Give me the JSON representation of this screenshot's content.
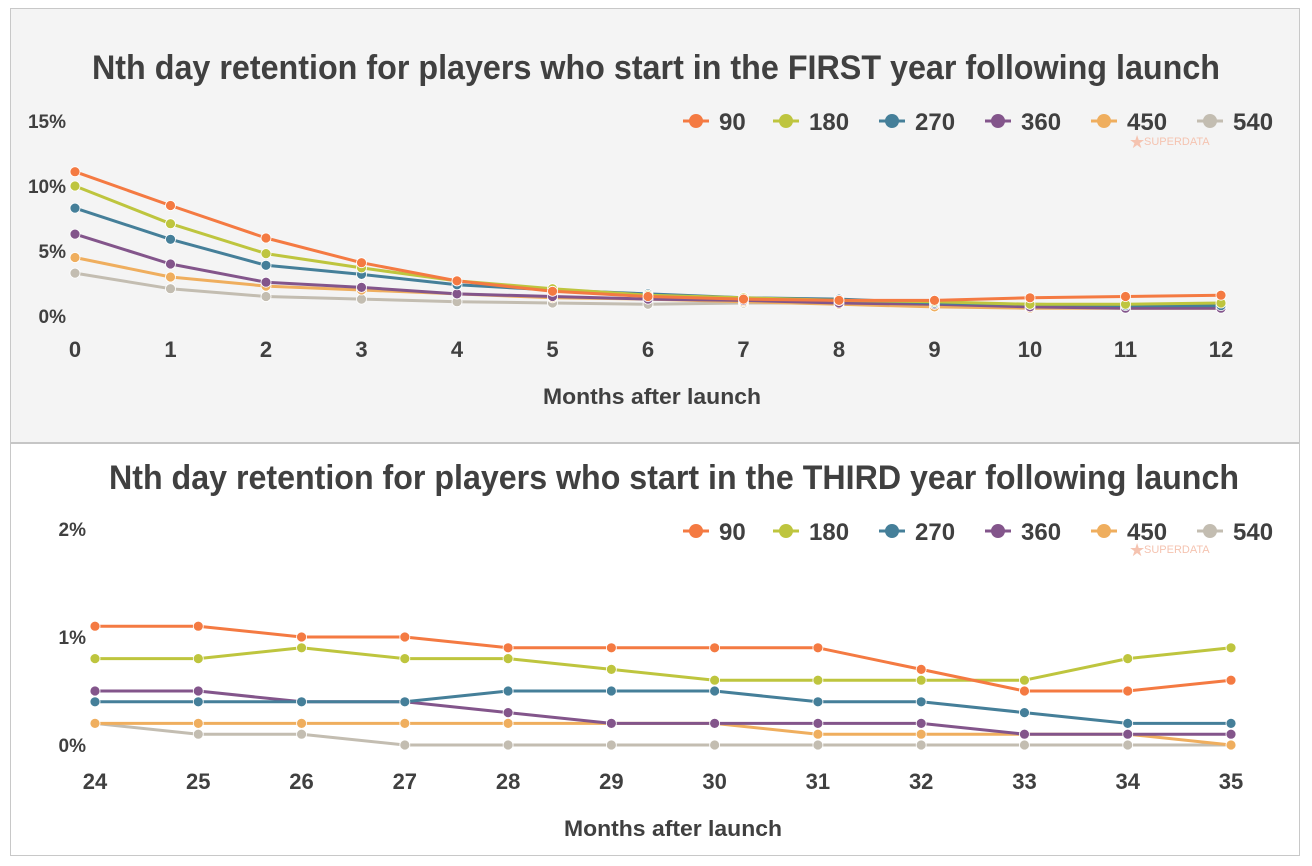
{
  "chart_data": [
    {
      "type": "line",
      "title": "Nth day retention for players who start in the FIRST year following launch",
      "xlabel": "Months after launch",
      "ylabel": "",
      "x": [
        0,
        1,
        2,
        3,
        4,
        5,
        6,
        7,
        8,
        9,
        10,
        11,
        12
      ],
      "ylim": [
        0,
        15
      ],
      "yticks": [
        0,
        5,
        10,
        15
      ],
      "ytick_labels": [
        "0%",
        "5%",
        "10%",
        "15%"
      ],
      "legend_position": "top-right",
      "grid": false,
      "watermark": "SUPERDATA",
      "series": [
        {
          "name": "90",
          "color": "#f47a42",
          "values": [
            11.1,
            8.5,
            6.0,
            4.1,
            2.7,
            1.9,
            1.5,
            1.3,
            1.2,
            1.2,
            1.4,
            1.5,
            1.6
          ]
        },
        {
          "name": "180",
          "color": "#bec53e",
          "values": [
            10.0,
            7.1,
            4.8,
            3.7,
            2.7,
            2.1,
            1.6,
            1.4,
            1.2,
            1.1,
            0.9,
            0.9,
            1.0
          ]
        },
        {
          "name": "270",
          "color": "#457f99",
          "values": [
            8.3,
            5.9,
            3.9,
            3.2,
            2.4,
            2.0,
            1.7,
            1.4,
            1.3,
            1.0,
            0.9,
            0.8,
            0.8
          ]
        },
        {
          "name": "360",
          "color": "#83558b",
          "values": [
            6.3,
            4.0,
            2.6,
            2.2,
            1.7,
            1.5,
            1.3,
            1.2,
            1.0,
            0.9,
            0.7,
            0.6,
            0.6
          ]
        },
        {
          "name": "450",
          "color": "#efae5e",
          "values": [
            4.5,
            3.0,
            2.3,
            2.0,
            1.7,
            1.4,
            1.3,
            1.1,
            0.9,
            0.7,
            0.6,
            0.6,
            0.6
          ]
        },
        {
          "name": "540",
          "color": "#c3bdb1",
          "values": [
            3.3,
            2.1,
            1.5,
            1.3,
            1.1,
            1.0,
            0.9,
            1.0,
            1.0,
            0.9,
            0.7,
            0.7,
            0.7
          ]
        }
      ]
    },
    {
      "type": "line",
      "title": "Nth day retention for players who start in the THIRD year following launch",
      "xlabel": "Months after launch",
      "ylabel": "",
      "x": [
        24,
        25,
        26,
        27,
        28,
        29,
        30,
        31,
        32,
        33,
        34,
        35
      ],
      "ylim": [
        0,
        2
      ],
      "yticks": [
        0,
        1,
        2
      ],
      "ytick_labels": [
        "0%",
        "1%",
        "2%"
      ],
      "legend_position": "top-right",
      "grid": false,
      "watermark": "SUPERDATA",
      "series": [
        {
          "name": "90",
          "color": "#f47a42",
          "values": [
            1.1,
            1.1,
            1.0,
            1.0,
            0.9,
            0.9,
            0.9,
            0.9,
            0.7,
            0.5,
            0.5,
            0.6
          ]
        },
        {
          "name": "180",
          "color": "#bec53e",
          "values": [
            0.8,
            0.8,
            0.9,
            0.8,
            0.8,
            0.7,
            0.6,
            0.6,
            0.6,
            0.6,
            0.8,
            0.9
          ]
        },
        {
          "name": "270",
          "color": "#457f99",
          "values": [
            0.4,
            0.4,
            0.4,
            0.4,
            0.5,
            0.5,
            0.5,
            0.4,
            0.4,
            0.3,
            0.2,
            0.2
          ]
        },
        {
          "name": "360",
          "color": "#83558b",
          "values": [
            0.5,
            0.5,
            0.4,
            0.4,
            0.3,
            0.2,
            0.2,
            0.2,
            0.2,
            0.1,
            0.1,
            0.1
          ]
        },
        {
          "name": "450",
          "color": "#efae5e",
          "values": [
            0.2,
            0.2,
            0.2,
            0.2,
            0.2,
            0.2,
            0.2,
            0.1,
            0.1,
            0.1,
            0.1,
            0.0
          ]
        },
        {
          "name": "540",
          "color": "#c3bdb1",
          "values": [
            0.2,
            0.1,
            0.1,
            0.0,
            0.0,
            0.0,
            0.0,
            0.0,
            0.0,
            0.0,
            0.0,
            0.0
          ]
        }
      ]
    }
  ]
}
